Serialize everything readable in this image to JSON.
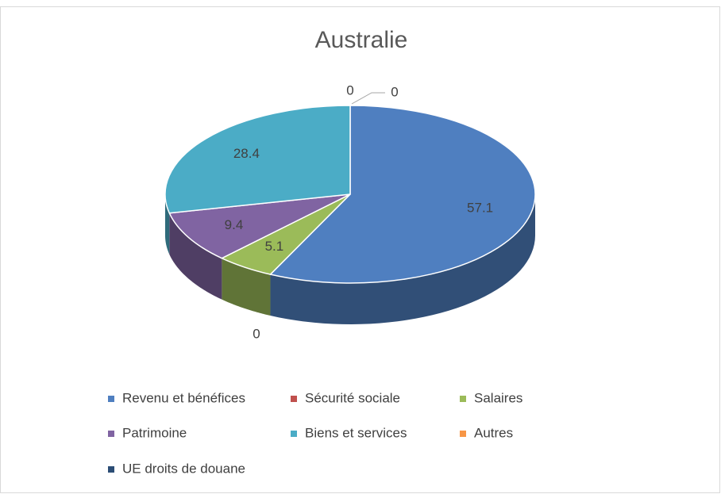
{
  "chart_data": {
    "type": "pie",
    "title": "Australie",
    "categories": [
      "Revenu et bénéfices",
      "Sécurité sociale",
      "Salaires",
      "Patrimoine",
      "Biens et services",
      "Autres",
      "UE droits de douane"
    ],
    "values": [
      57.1,
      0,
      5.1,
      9.4,
      28.4,
      0,
      0
    ],
    "colors": [
      "#4f7fc0",
      "#c0504d",
      "#9bbb59",
      "#8064a2",
      "#4bacc6",
      "#f79646",
      "#2c4d75"
    ],
    "legend": "bottom"
  }
}
